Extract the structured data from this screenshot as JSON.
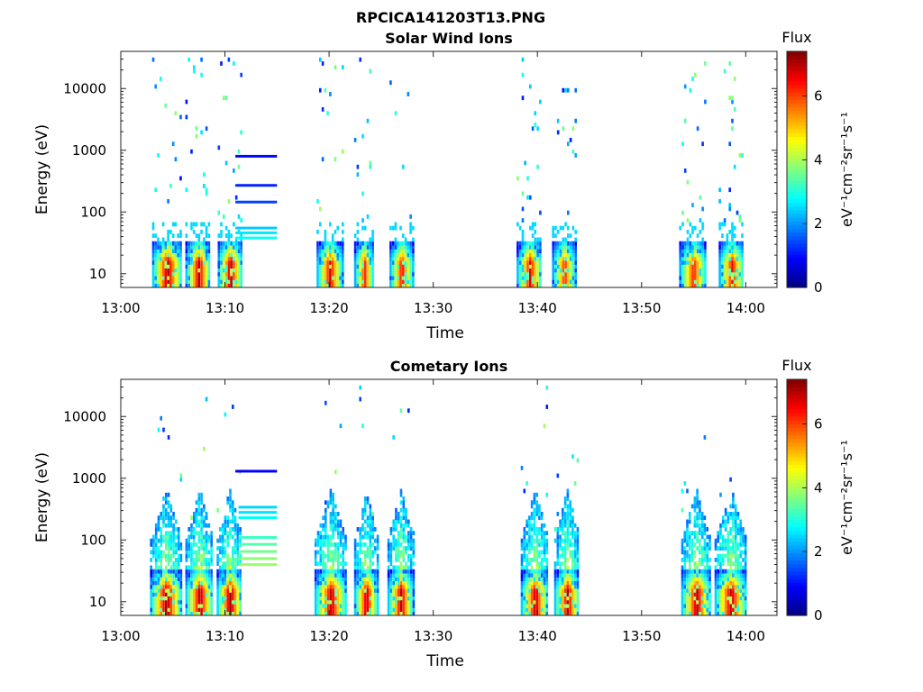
{
  "figure_title": "RPCICA141203T13.PNG",
  "chart_data": [
    {
      "type": "heatmap",
      "title": "Solar Wind Ions",
      "xlabel": "Time",
      "ylabel": "Energy (eV)",
      "x_ticks": [
        "13:00",
        "13:10",
        "13:20",
        "13:30",
        "13:40",
        "13:50",
        "14:00"
      ],
      "x_range": [
        "13:00",
        "14:03"
      ],
      "y_scale": "log",
      "y_ticks": [
        "10",
        "100",
        "1000",
        "10000"
      ],
      "y_range": [
        6,
        40000
      ],
      "colorbar": {
        "title": "Flux",
        "unit": "eV⁻¹cm⁻²sr⁻¹s⁻¹",
        "ticks": [
          "0",
          "2",
          "4",
          "6"
        ],
        "range": [
          0,
          7.4
        ]
      },
      "colormap": "jet",
      "bursts": [
        {
          "start": "13:03",
          "end": "13:05.8",
          "peak": 7.2
        },
        {
          "start": "13:06.2",
          "end": "13:08.6",
          "peak": 7.0
        },
        {
          "start": "13:09.3",
          "end": "13:11.6",
          "peak": 7.1
        },
        {
          "start": "13:18.8",
          "end": "13:21.2",
          "peak": 6.8
        },
        {
          "start": "13:22.4",
          "end": "13:24.2",
          "peak": 6.4
        },
        {
          "start": "13:25.8",
          "end": "13:28",
          "peak": 6.6
        },
        {
          "start": "13:38",
          "end": "13:40.4",
          "peak": 6.7
        },
        {
          "start": "13:41.4",
          "end": "13:43.6",
          "peak": 6.3
        },
        {
          "start": "13:53.6",
          "end": "13:56.2",
          "peak": 6.4
        },
        {
          "start": "13:57.4",
          "end": "13:59.8",
          "peak": 6.6
        }
      ],
      "lines": [
        {
          "start": "13:11",
          "end": "13:15",
          "energy": 800,
          "value": 1.0
        },
        {
          "start": "13:11",
          "end": "13:15",
          "energy": 270,
          "value": 1.2
        },
        {
          "start": "13:11",
          "end": "13:15",
          "energy": 145,
          "value": 1.4
        },
        {
          "start": "13:11",
          "end": "13:15",
          "energy": 55,
          "value": 2.4
        },
        {
          "start": "13:11",
          "end": "13:15",
          "energy": 46,
          "value": 2.6
        },
        {
          "start": "13:11",
          "end": "13:15",
          "energy": 38,
          "value": 2.8
        }
      ]
    },
    {
      "type": "heatmap",
      "title": "Cometary Ions",
      "xlabel": "Time",
      "ylabel": "Energy (eV)",
      "x_ticks": [
        "13:00",
        "13:10",
        "13:20",
        "13:30",
        "13:40",
        "13:50",
        "14:00"
      ],
      "x_range": [
        "13:00",
        "14:03"
      ],
      "y_scale": "log",
      "y_ticks": [
        "10",
        "100",
        "1000",
        "10000"
      ],
      "y_range": [
        6,
        40000
      ],
      "colorbar": {
        "title": "Flux",
        "unit": "eV⁻¹cm⁻²sr⁻¹s⁻¹",
        "ticks": [
          "0",
          "2",
          "4",
          "6"
        ],
        "range": [
          0,
          7.4
        ]
      },
      "colormap": "jet",
      "bursts": [
        {
          "start": "13:02.8",
          "end": "13:05.8",
          "peak": 7.3
        },
        {
          "start": "13:06.2",
          "end": "13:08.8",
          "peak": 7.2
        },
        {
          "start": "13:09.2",
          "end": "13:11.6",
          "peak": 7.3
        },
        {
          "start": "13:18.6",
          "end": "13:21.6",
          "peak": 7.0
        },
        {
          "start": "13:22.4",
          "end": "13:24.6",
          "peak": 7.0
        },
        {
          "start": "13:25.6",
          "end": "13:28",
          "peak": 7.0
        },
        {
          "start": "13:38.4",
          "end": "13:41",
          "peak": 7.0
        },
        {
          "start": "13:41.6",
          "end": "13:44",
          "peak": 7.0
        },
        {
          "start": "13:53.8",
          "end": "13:56.6",
          "peak": 7.1
        },
        {
          "start": "13:57",
          "end": "14:00",
          "peak": 7.1
        }
      ],
      "lines": [
        {
          "start": "13:11",
          "end": "13:15",
          "energy": 1300,
          "value": 0.9
        },
        {
          "start": "13:11.3",
          "end": "13:15",
          "energy": 340,
          "value": 2.5
        },
        {
          "start": "13:11.3",
          "end": "13:15",
          "energy": 280,
          "value": 2.6
        },
        {
          "start": "13:11.3",
          "end": "13:15",
          "energy": 230,
          "value": 2.8
        },
        {
          "start": "13:11.3",
          "end": "13:15",
          "energy": 110,
          "value": 3.2
        },
        {
          "start": "13:11.3",
          "end": "13:15",
          "energy": 85,
          "value": 3.4
        },
        {
          "start": "13:11.3",
          "end": "13:15",
          "energy": 65,
          "value": 3.6
        },
        {
          "start": "13:11.3",
          "end": "13:15",
          "energy": 50,
          "value": 3.8
        },
        {
          "start": "13:11.3",
          "end": "13:15",
          "energy": 40,
          "value": 3.9
        }
      ]
    }
  ]
}
